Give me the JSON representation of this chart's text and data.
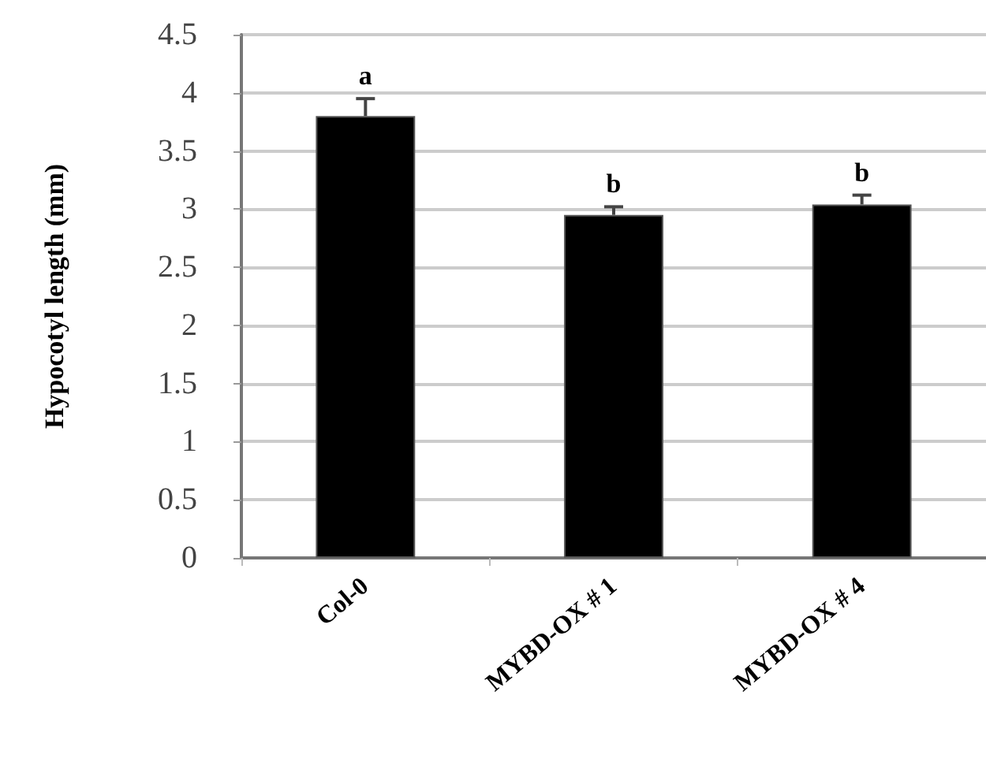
{
  "chart_data": {
    "type": "bar",
    "ylabel": "Hypocotyl length (mm)",
    "categories": [
      "Col-0",
      "MYBD-OX # 1",
      "MYBD-OX # 4"
    ],
    "values": [
      3.8,
      2.95,
      3.04
    ],
    "color": "#000000",
    "errors": [
      0.15,
      0.07,
      0.08
    ],
    "ylim": [
      0,
      4.5
    ],
    "yticks": [
      0,
      0.5,
      1,
      1.5,
      2,
      2.5,
      3,
      3.5,
      4,
      4.5
    ],
    "grid": "y",
    "annotations": [
      {
        "text": "a",
        "x": "Col-0",
        "y": 3.95
      },
      {
        "text": "b",
        "x": "MYBD-OX # 1",
        "y": 3.02
      },
      {
        "text": "b",
        "x": "MYBD-OX # 4",
        "y": 3.12
      }
    ]
  }
}
